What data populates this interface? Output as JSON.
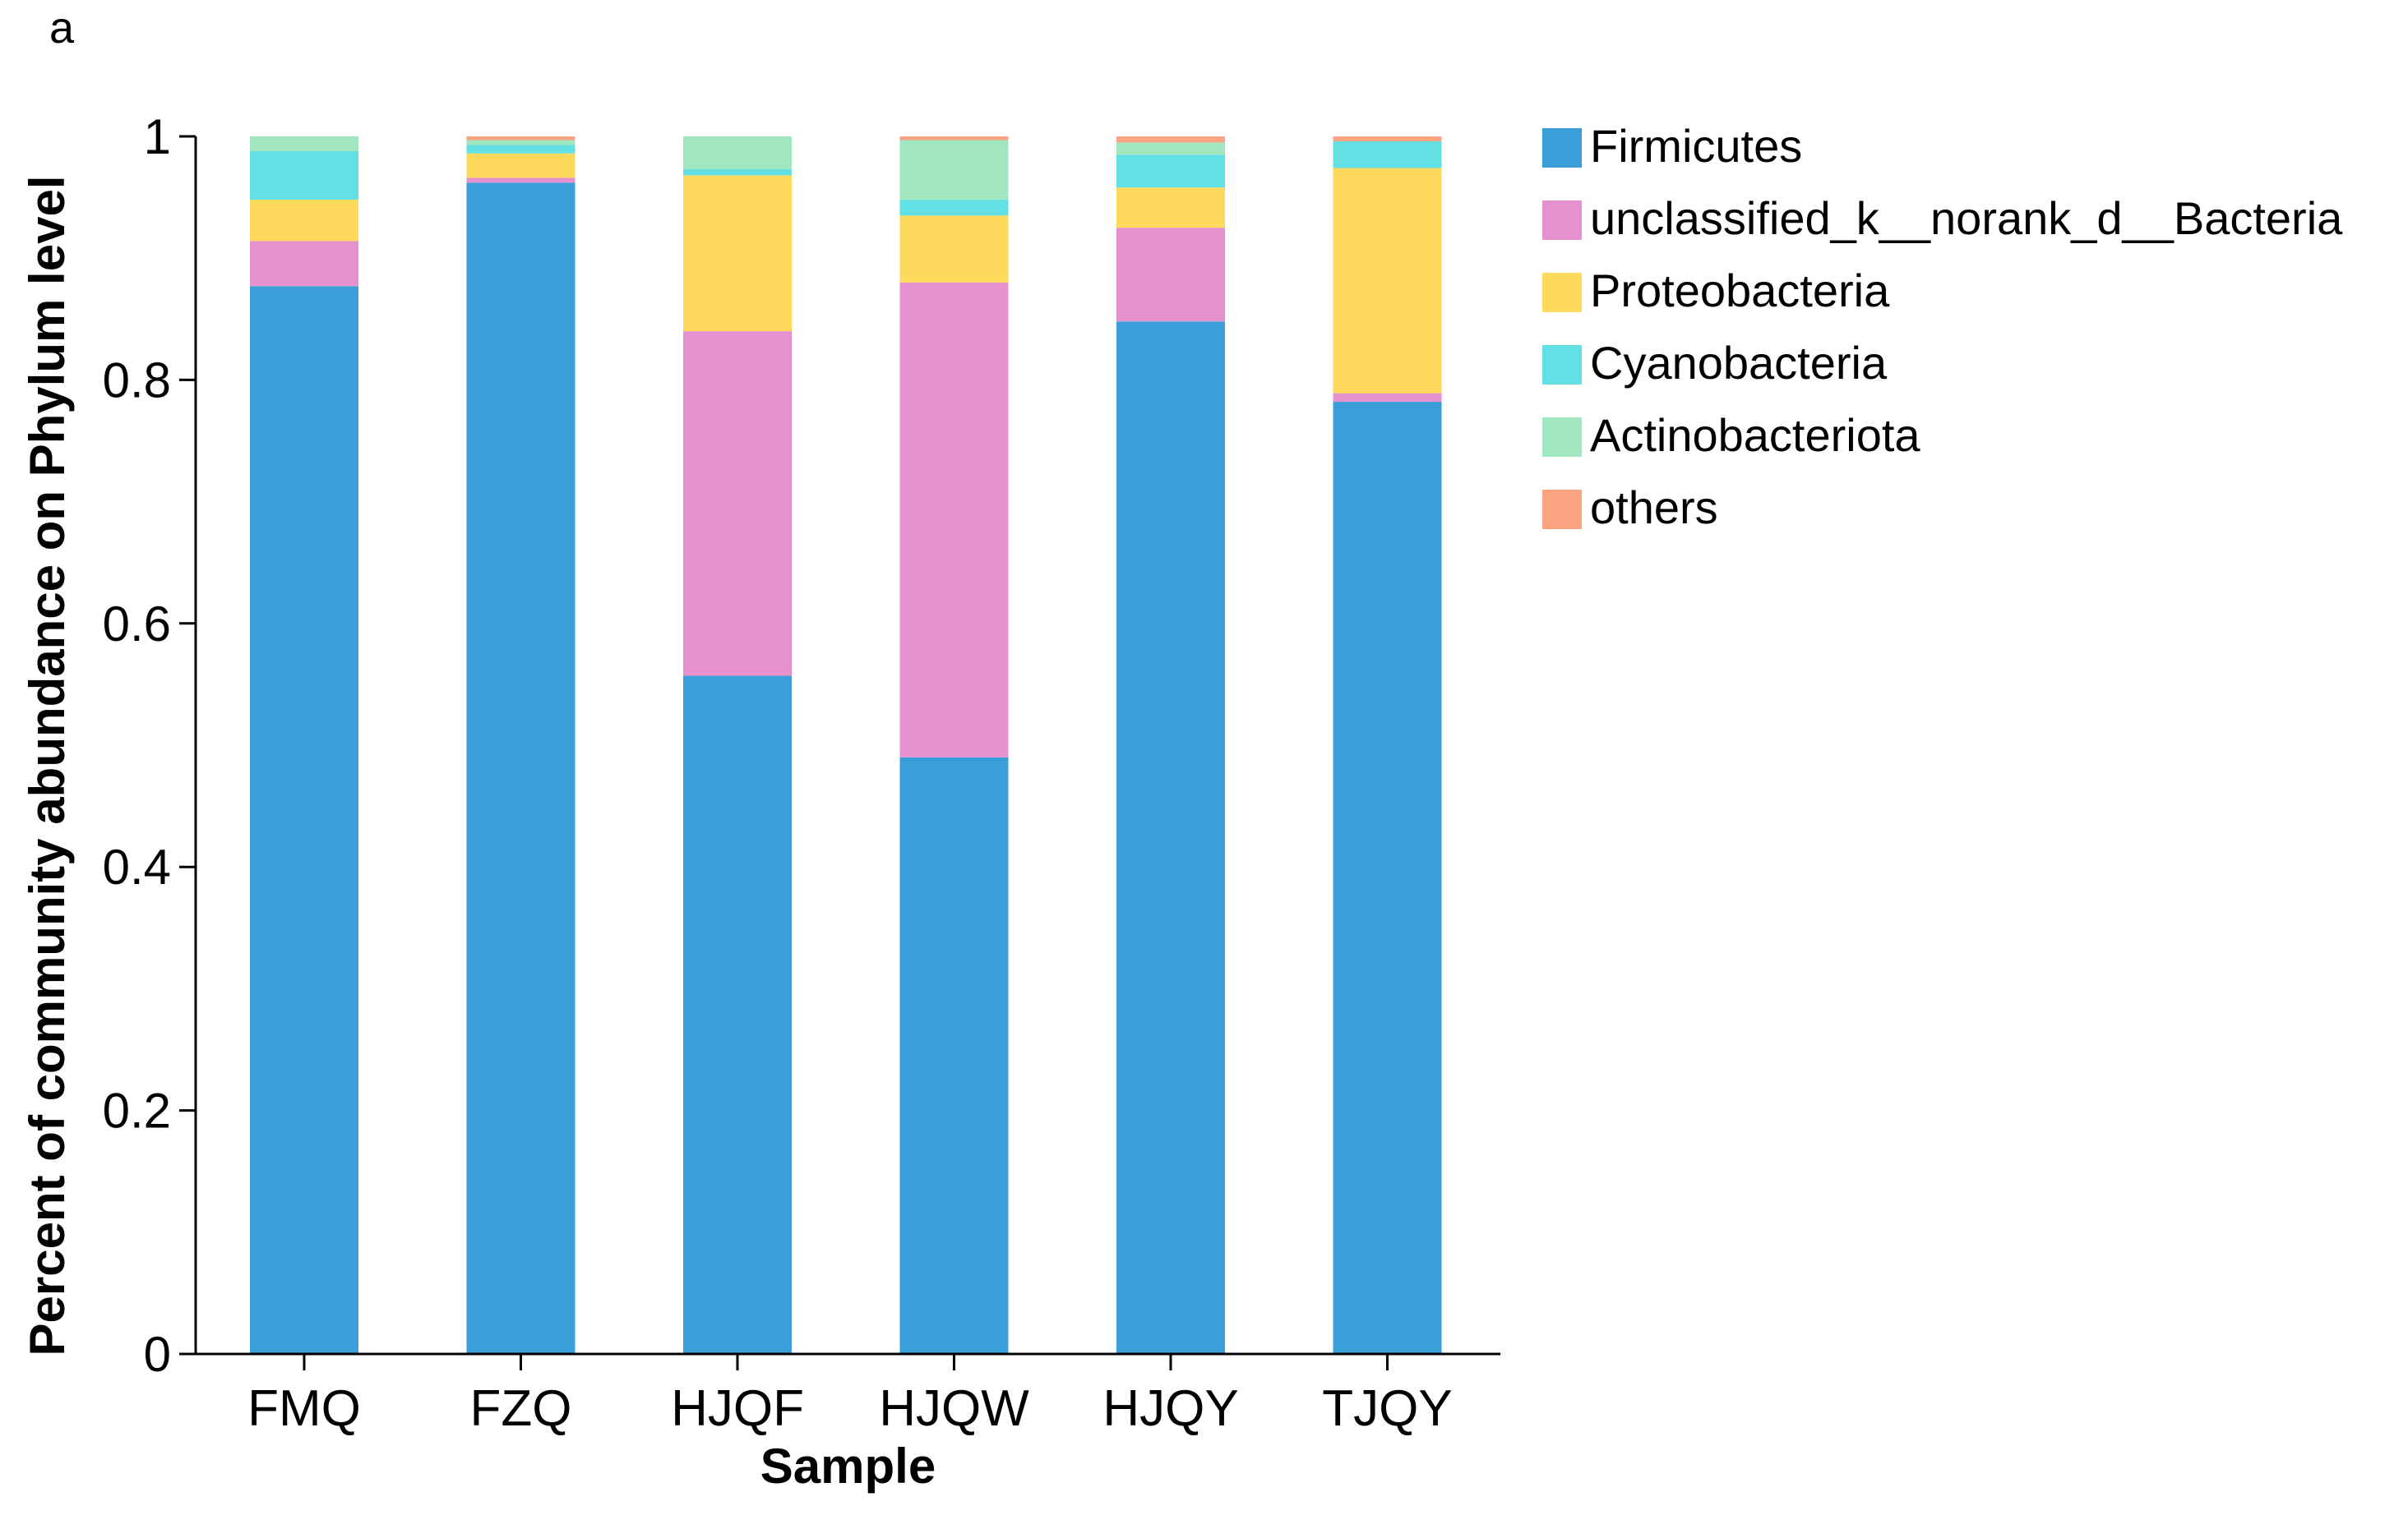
{
  "panel_label": "a",
  "chart_data": {
    "type": "bar",
    "stacked": true,
    "xlabel": "Sample",
    "ylabel": "Percent of community abundance on Phylum level",
    "ylim": [
      0,
      1
    ],
    "yticks": [
      0,
      0.2,
      0.4,
      0.6,
      0.8,
      1
    ],
    "ytick_labels": [
      "0",
      "0.2",
      "0.4",
      "0.6",
      "0.8",
      "1"
    ],
    "categories": [
      "FMQ",
      "FZQ",
      "HJQF",
      "HJQW",
      "HJQY",
      "TJQY"
    ],
    "legend_position": "right",
    "series": [
      {
        "name": "Firmicutes",
        "color": "#3A9FD9",
        "values": [
          0.877,
          0.962,
          0.557,
          0.49,
          0.848,
          0.782
        ]
      },
      {
        "name": "unclassified_k__norank_d__Bacteria",
        "color": "#E591CF",
        "values": [
          0.037,
          0.004,
          0.283,
          0.39,
          0.077,
          0.007
        ]
      },
      {
        "name": "Proteobacteria",
        "color": "#FDD95C",
        "values": [
          0.034,
          0.02,
          0.128,
          0.055,
          0.033,
          0.185
        ]
      },
      {
        "name": "Cyanobacteria",
        "color": "#63E0E4",
        "values": [
          0.04,
          0.007,
          0.005,
          0.013,
          0.027,
          0.022
        ]
      },
      {
        "name": "Actinobacteriota",
        "color": "#A0E6BE",
        "values": [
          0.012,
          0.004,
          0.027,
          0.049,
          0.01,
          0.0
        ]
      },
      {
        "name": "others",
        "color": "#FBA281",
        "values": [
          0.0,
          0.003,
          0.0,
          0.003,
          0.005,
          0.004
        ]
      }
    ]
  }
}
